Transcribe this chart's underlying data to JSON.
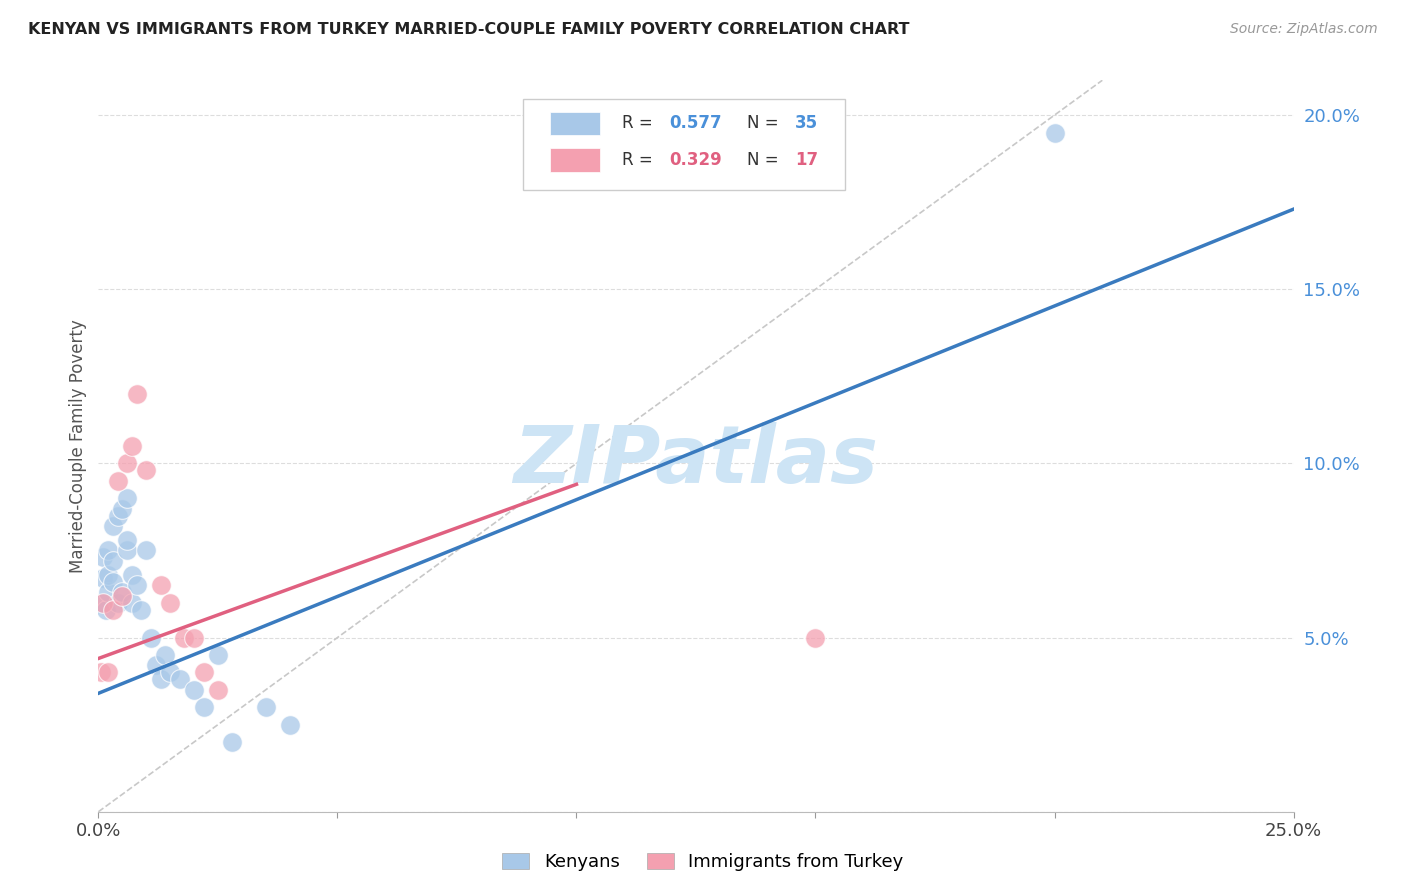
{
  "title": "KENYAN VS IMMIGRANTS FROM TURKEY MARRIED-COUPLE FAMILY POVERTY CORRELATION CHART",
  "source": "Source: ZipAtlas.com",
  "ylabel": "Married-Couple Family Poverty",
  "xlim": [
    0.0,
    0.25
  ],
  "ylim": [
    0.0,
    0.21
  ],
  "xticks": [
    0.0,
    0.05,
    0.1,
    0.15,
    0.2,
    0.25
  ],
  "xtick_labels": [
    "0.0%",
    "",
    "",
    "",
    "",
    "25.0%"
  ],
  "yticks": [
    0.0,
    0.05,
    0.1,
    0.15,
    0.2
  ],
  "ytick_labels": [
    "",
    "5.0%",
    "10.0%",
    "15.0%",
    "20.0%"
  ],
  "kenyan_R": 0.577,
  "kenyan_N": 35,
  "turkey_R": 0.329,
  "turkey_N": 17,
  "kenyan_color": "#a8c8e8",
  "turkey_color": "#f4a0b0",
  "kenyan_line_color": "#3a7bbf",
  "turkey_line_color": "#e06080",
  "diagonal_color": "#c8c8c8",
  "background_color": "#ffffff",
  "grid_color": "#dddddd",
  "watermark_text": "ZIPatlas",
  "watermark_color": "#cde4f5",
  "kenyan_x": [
    0.0005,
    0.001,
    0.001,
    0.0015,
    0.002,
    0.002,
    0.002,
    0.003,
    0.003,
    0.003,
    0.004,
    0.004,
    0.005,
    0.005,
    0.006,
    0.006,
    0.006,
    0.007,
    0.007,
    0.008,
    0.009,
    0.01,
    0.011,
    0.012,
    0.013,
    0.014,
    0.015,
    0.017,
    0.02,
    0.022,
    0.025,
    0.028,
    0.035,
    0.04,
    0.2
  ],
  "kenyan_y": [
    0.06,
    0.067,
    0.073,
    0.058,
    0.063,
    0.068,
    0.075,
    0.066,
    0.072,
    0.082,
    0.06,
    0.085,
    0.063,
    0.087,
    0.09,
    0.075,
    0.078,
    0.068,
    0.06,
    0.065,
    0.058,
    0.075,
    0.05,
    0.042,
    0.038,
    0.045,
    0.04,
    0.038,
    0.035,
    0.03,
    0.045,
    0.02,
    0.03,
    0.025,
    0.195
  ],
  "turkey_x": [
    0.0005,
    0.001,
    0.002,
    0.003,
    0.004,
    0.005,
    0.006,
    0.007,
    0.008,
    0.01,
    0.013,
    0.015,
    0.018,
    0.02,
    0.022,
    0.025,
    0.15
  ],
  "turkey_y": [
    0.04,
    0.06,
    0.04,
    0.058,
    0.095,
    0.062,
    0.1,
    0.105,
    0.12,
    0.098,
    0.065,
    0.06,
    0.05,
    0.05,
    0.04,
    0.035,
    0.05
  ],
  "figsize": [
    14.06,
    8.92
  ],
  "dpi": 100
}
